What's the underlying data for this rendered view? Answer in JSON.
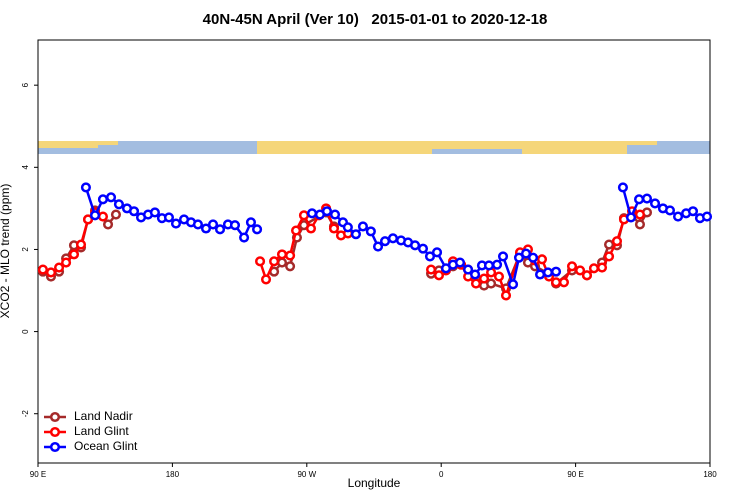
{
  "chart_data": {
    "type": "line",
    "title": "40N-45N April (Ver 10)   2015-01-01 to 2020-12-18",
    "x_label": "Longitude",
    "y_label": "XCO2 - MLO trend (ppm)",
    "xlim": [
      90,
      540
    ],
    "xticks": [
      {
        "value": 90,
        "label": "90 E"
      },
      {
        "value": 180,
        "label": "180"
      },
      {
        "value": 270,
        "label": "90 W"
      },
      {
        "value": 360,
        "label": "0"
      },
      {
        "value": 450,
        "label": "90 E"
      },
      {
        "value": 540,
        "label": "180"
      }
    ],
    "ylim": [
      -3.2,
      7.1
    ],
    "yticks": [
      -2,
      0,
      2,
      4,
      6
    ],
    "legend": "bottom-left",
    "series": [
      {
        "name": "Land Nadir",
        "color": "#a52a2a",
        "x": [
          93.3,
          98.7,
          104.1,
          108.8,
          114.1,
          118.8,
          123.5,
          128.2,
          136.9,
          142.2,
          null,
          248.1,
          253.4,
          258.8,
          263.4,
          268.1,
          282.9,
          288.2,
          null,
          353.2,
          358.5,
          367.9,
          378.0,
          383.3,
          388.7,
          393.4,
          403.4,
          412.8,
          418.1,
          422.8,
          432.2,
          436.9,
          447.6,
          457.6,
          467.7,
          472.4,
          477.7,
          482.4,
          487.8,
          493.1,
          497.8
        ],
        "values": [
          1.46,
          1.34,
          1.46,
          1.78,
          2.1,
          2.05,
          2.73,
          2.95,
          2.61,
          2.85,
          null,
          1.46,
          1.68,
          1.59,
          2.29,
          2.59,
          2.9,
          2.56,
          null,
          1.41,
          1.49,
          1.59,
          1.51,
          1.27,
          1.12,
          1.17,
          1.05,
          1.9,
          1.68,
          1.59,
          1.41,
          1.17,
          1.49,
          1.37,
          1.68,
          2.12,
          2.1,
          2.76,
          2.83,
          2.61,
          2.9
        ]
      },
      {
        "name": "Land Glint",
        "color": "#ff0000",
        "x": [
          93.3,
          98.7,
          104.1,
          108.8,
          114.1,
          118.8,
          123.5,
          128.2,
          133.5,
          null,
          238.7,
          242.7,
          248.1,
          253.4,
          258.8,
          262.8,
          268.1,
          272.8,
          278.2,
          282.9,
          288.2,
          292.9,
          297.6,
          null,
          353.2,
          358.5,
          363.2,
          367.9,
          373.3,
          378.0,
          383.3,
          388.7,
          393.4,
          398.7,
          403.4,
          412.8,
          418.1,
          422.8,
          427.5,
          432.2,
          436.9,
          442.2,
          447.6,
          453.0,
          457.6,
          462.3,
          467.7,
          472.4,
          477.7,
          482.4,
          487.8,
          493.1
        ],
        "values": [
          1.51,
          1.44,
          1.56,
          1.68,
          1.88,
          2.12,
          2.73,
          2.9,
          2.8,
          null,
          1.71,
          1.27,
          1.71,
          1.88,
          1.85,
          2.46,
          2.83,
          2.51,
          2.83,
          3.0,
          2.51,
          2.34,
          2.39,
          null,
          1.51,
          1.37,
          1.49,
          1.71,
          1.63,
          1.34,
          1.17,
          1.29,
          1.44,
          1.34,
          0.88,
          1.93,
          2.0,
          1.73,
          1.76,
          1.34,
          1.2,
          1.2,
          1.59,
          1.49,
          1.37,
          1.54,
          1.56,
          1.83,
          2.2,
          2.73,
          2.93,
          2.85
        ]
      },
      {
        "name": "Ocean Glint",
        "color": "#0000ff",
        "x": [
          122.1,
          128.2,
          133.5,
          138.9,
          144.2,
          149.6,
          154.3,
          159.0,
          163.7,
          168.3,
          173.0,
          177.7,
          182.4,
          187.8,
          192.5,
          197.1,
          202.5,
          207.2,
          211.9,
          217.2,
          221.9,
          228.0,
          232.6,
          236.7,
          null,
          273.5,
          278.8,
          283.5,
          288.9,
          294.2,
          297.5,
          302.9,
          307.6,
          312.9,
          317.7,
          322.4,
          327.7,
          333.1,
          337.8,
          342.5,
          347.8,
          352.5,
          357.2,
          363.2,
          367.9,
          372.6,
          378.0,
          382.7,
          387.3,
          392.0,
          397.4,
          401.4,
          408.1,
          412.1,
          416.8,
          421.5,
          426.2,
          431.5,
          436.9,
          null,
          481.7,
          487.1,
          492.5,
          497.8,
          503.2,
          508.5,
          513.2,
          518.6,
          524.0,
          528.6,
          533.3,
          538.0
        ],
        "values": [
          3.51,
          2.83,
          3.22,
          3.27,
          3.1,
          3.0,
          2.93,
          2.78,
          2.85,
          2.9,
          2.76,
          2.78,
          2.63,
          2.73,
          2.66,
          2.61,
          2.51,
          2.61,
          2.49,
          2.61,
          2.59,
          2.29,
          2.66,
          2.49,
          null,
          2.88,
          2.85,
          2.93,
          2.85,
          2.66,
          2.54,
          2.37,
          2.56,
          2.44,
          2.07,
          2.2,
          2.27,
          2.22,
          2.17,
          2.1,
          2.02,
          1.83,
          1.93,
          1.54,
          1.63,
          1.68,
          1.51,
          1.39,
          1.61,
          1.61,
          1.63,
          1.83,
          1.15,
          1.8,
          1.9,
          1.8,
          1.39,
          1.44,
          1.46,
          null,
          3.51,
          2.78,
          3.22,
          3.24,
          3.12,
          3.0,
          2.95,
          2.8,
          2.88,
          2.93,
          2.76,
          2.8
        ]
      }
    ]
  }
}
